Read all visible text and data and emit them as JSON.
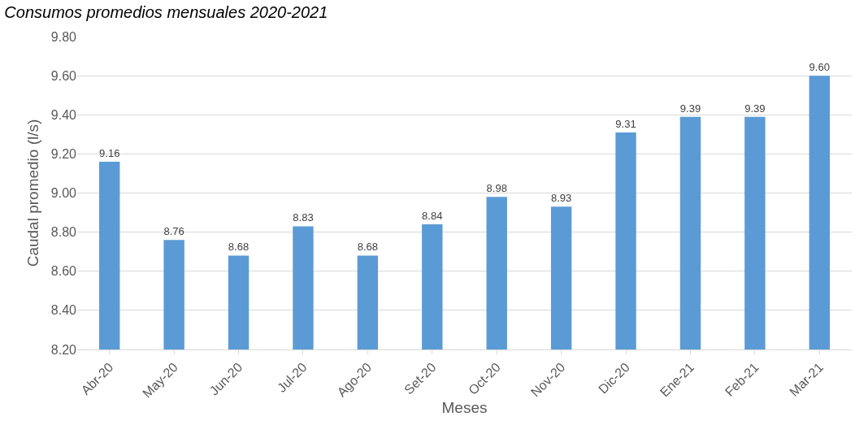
{
  "chart_data": {
    "type": "bar",
    "title": "Consumos promedios mensuales 2020-2021",
    "xlabel": "Meses",
    "ylabel": "Caudal promedio (l/s)",
    "categories": [
      "Abr-20",
      "May-20",
      "Jun-20",
      "Jul-20",
      "Ago-20",
      "Set-20",
      "Oct-20",
      "Nov-20",
      "Dic-20",
      "Ene-21",
      "Feb-21",
      "Mar-21"
    ],
    "values": [
      9.16,
      8.76,
      8.68,
      8.83,
      8.68,
      8.84,
      8.98,
      8.93,
      9.31,
      9.39,
      9.39,
      9.6
    ],
    "color": "#5b9bd5",
    "value_labels": [
      "9.16",
      "8.76",
      "8.68",
      "8.83",
      "8.68",
      "8.84",
      "8.98",
      "8.93",
      "9.31",
      "9.39",
      "9.39",
      "9.60"
    ],
    "ylim": [
      8.2,
      9.8
    ],
    "yticks": [
      {
        "value": 8.2,
        "label": "8.20"
      },
      {
        "value": 8.4,
        "label": "8.40"
      },
      {
        "value": 8.6,
        "label": "8.60"
      },
      {
        "value": 8.8,
        "label": "8.80"
      },
      {
        "value": 9.0,
        "label": "9.00"
      },
      {
        "value": 9.2,
        "label": "9.20"
      },
      {
        "value": 9.4,
        "label": "9.40"
      },
      {
        "value": 9.6,
        "label": "9.60"
      },
      {
        "value": 9.8,
        "label": "9.80"
      }
    ],
    "grid": "y"
  }
}
